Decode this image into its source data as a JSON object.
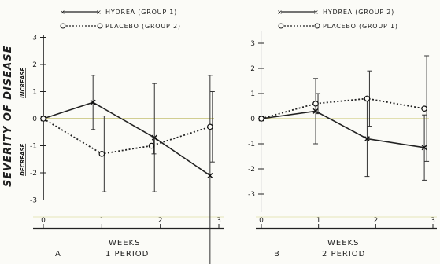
{
  "chart_data": [
    {
      "type": "line",
      "panel_label": "A",
      "period_label": "1 PERIOD",
      "xlabel": "WEEKS",
      "ylabel": "SEVERITY OF DISEASE",
      "ylabel_upper": "INCREASE",
      "ylabel_lower": "DECREASE",
      "x_ticks": [
        "0",
        "1",
        "2",
        "3"
      ],
      "y_ticks": [
        "3",
        "2",
        "1",
        "0",
        "-1",
        "-2",
        "-3"
      ],
      "xlim": [
        0,
        3
      ],
      "ylim": [
        -3,
        3
      ],
      "legend": {
        "position": "top"
      },
      "series": [
        {
          "name": "HYDREA (GROUP 1)",
          "marker": "x",
          "line": "solid",
          "x": [
            0,
            0.85,
            1.9,
            2.85
          ],
          "y": [
            0,
            0.6,
            -0.7,
            -2.1
          ],
          "err": [
            0,
            1.0,
            2.0,
            3.7
          ]
        },
        {
          "name": "PLACEBO (GROUP 2)",
          "marker": "o",
          "line": "dotted",
          "x": [
            0,
            1.0,
            1.85,
            2.85
          ],
          "y": [
            0,
            -1.3,
            -1.0,
            -0.3
          ],
          "err": [
            0,
            1.4,
            0.3,
            1.3
          ]
        }
      ]
    },
    {
      "type": "line",
      "panel_label": "B",
      "period_label": "2 PERIOD",
      "xlabel": "WEEKS",
      "x_ticks": [
        "0",
        "1",
        "2",
        "3"
      ],
      "y_ticks": [
        "3",
        "2",
        "1",
        "0",
        "-1",
        "-2",
        "-3"
      ],
      "xlim": [
        0,
        3
      ],
      "ylim": [
        -3,
        3
      ],
      "legend": {
        "position": "top"
      },
      "series": [
        {
          "name": "HYDREA (GROUP 2)",
          "marker": "x",
          "line": "solid",
          "x": [
            0,
            0.95,
            1.85,
            2.85
          ],
          "y": [
            0,
            0.3,
            -0.8,
            -1.15
          ],
          "err": [
            0,
            1.3,
            1.5,
            1.3
          ]
        },
        {
          "name": "PLACEBO (GROUP 1)",
          "marker": "o",
          "line": "dotted",
          "x": [
            0,
            0.95,
            1.85,
            2.85
          ],
          "y": [
            0,
            0.6,
            0.8,
            0.4
          ],
          "err": [
            0,
            0.4,
            1.1,
            2.1
          ]
        }
      ]
    }
  ]
}
